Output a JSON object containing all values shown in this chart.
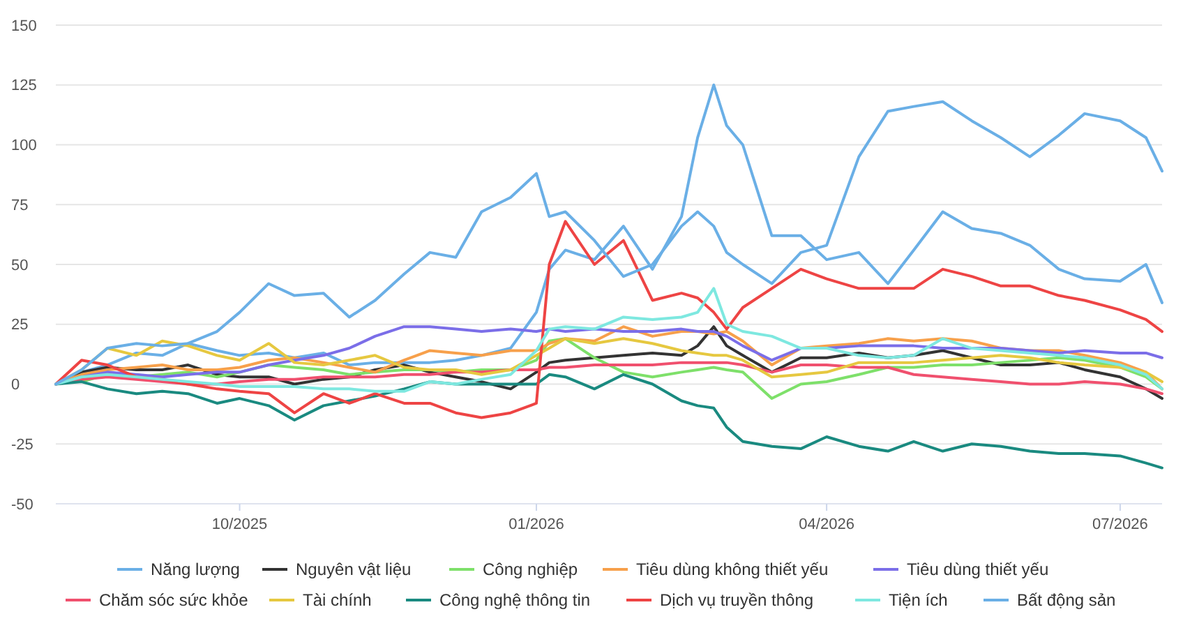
{
  "chart_data": {
    "type": "line",
    "x": [
      "2025-08-05",
      "2025-08-13",
      "2025-08-21",
      "2025-08-30",
      "2025-09-07",
      "2025-09-15",
      "2025-09-24",
      "2025-10-01",
      "2025-10-10",
      "2025-10-18",
      "2025-10-27",
      "2025-11-04",
      "2025-11-12",
      "2025-11-21",
      "2025-11-29",
      "2025-12-07",
      "2025-12-15",
      "2025-12-24",
      "2026-01-01",
      "2026-01-05",
      "2026-01-10",
      "2026-01-19",
      "2026-01-28",
      "2026-02-06",
      "2026-02-15",
      "2026-02-20",
      "2026-02-25",
      "2026-03-01",
      "2026-03-06",
      "2026-03-15",
      "2026-03-24",
      "2026-04-01",
      "2026-04-11",
      "2026-04-20",
      "2026-04-28",
      "2026-05-07",
      "2026-05-16",
      "2026-05-25",
      "2026-06-03",
      "2026-06-12",
      "2026-06-20",
      "2026-07-01",
      "2026-07-09",
      "2026-07-14"
    ],
    "series": [
      {
        "name": "Năng lượng",
        "color": "#6aafe6",
        "values": [
          0,
          5,
          8,
          13,
          12,
          17,
          14,
          12,
          13,
          11,
          13,
          8,
          9,
          9,
          9,
          10,
          12,
          15,
          30,
          48,
          56,
          52,
          66,
          48,
          70,
          103,
          125,
          108,
          100,
          62,
          62,
          52,
          55,
          42,
          56,
          72,
          65,
          63,
          58,
          48,
          44,
          43,
          50,
          34
        ]
      },
      {
        "name": "Nguyên vật liệu",
        "color": "#333333",
        "values": [
          0,
          5,
          7,
          6,
          6,
          8,
          4,
          3,
          3,
          0,
          2,
          3,
          6,
          8,
          5,
          3,
          1,
          -2,
          5,
          9,
          10,
          11,
          12,
          13,
          12,
          16,
          24,
          16,
          12,
          5,
          11,
          11,
          13,
          11,
          12,
          14,
          11,
          8,
          8,
          9,
          6,
          3,
          -2,
          -6
        ]
      },
      {
        "name": "Công nghiệp",
        "color": "#7ee06a",
        "values": [
          null,
          1,
          4,
          3,
          4,
          5,
          3,
          5,
          8,
          7,
          6,
          4,
          5,
          6,
          6,
          5,
          6,
          6,
          10,
          18,
          19,
          11,
          5,
          3,
          5,
          6,
          7,
          6,
          5,
          -6,
          0,
          1,
          4,
          7,
          7,
          8,
          8,
          9,
          10,
          11,
          10,
          7,
          3,
          -2
        ]
      },
      {
        "name": "Tiêu dùng không thiết yếu",
        "color": "#f7a04b",
        "values": [
          0,
          4,
          6,
          7,
          8,
          6,
          6,
          7,
          10,
          11,
          9,
          7,
          5,
          10,
          14,
          13,
          12,
          14,
          14,
          17,
          19,
          18,
          24,
          20,
          22,
          22,
          21,
          22,
          18,
          8,
          15,
          16,
          17,
          19,
          18,
          19,
          18,
          15,
          14,
          14,
          12,
          9,
          5,
          -2
        ]
      },
      {
        "name": "Tiêu dùng thiết yếu",
        "color": "#7b6ee8",
        "values": [
          0,
          3,
          5,
          4,
          3,
          4,
          5,
          5,
          8,
          10,
          12,
          15,
          20,
          24,
          24,
          23,
          22,
          23,
          22,
          23,
          22,
          23,
          22,
          22,
          23,
          22,
          22,
          20,
          16,
          10,
          15,
          15,
          16,
          16,
          16,
          15,
          15,
          15,
          14,
          13,
          14,
          13,
          13,
          11
        ]
      },
      {
        "name": "Chăm sóc sức khỏe",
        "color": "#f0506e",
        "values": [
          0,
          2,
          3,
          2,
          1,
          0,
          0,
          1,
          2,
          2,
          3,
          3,
          3,
          4,
          4,
          5,
          5,
          6,
          6,
          7,
          7,
          8,
          8,
          8,
          9,
          9,
          9,
          9,
          8,
          5,
          8,
          8,
          7,
          7,
          4,
          3,
          2,
          1,
          0,
          0,
          1,
          0,
          -2,
          -4
        ]
      },
      {
        "name": "Tài chính",
        "color": "#e6c840",
        "values": [
          0,
          6,
          15,
          12,
          18,
          16,
          12,
          10,
          17,
          9,
          8,
          10,
          12,
          7,
          6,
          6,
          4,
          6,
          12,
          15,
          19,
          17,
          19,
          17,
          14,
          13,
          12,
          12,
          10,
          3,
          4,
          5,
          9,
          9,
          9,
          10,
          11,
          12,
          11,
          9,
          8,
          7,
          5,
          1
        ]
      },
      {
        "name": "Công nghệ thông tin",
        "color": "#1a8a80",
        "values": [
          0,
          1,
          -2,
          -4,
          -3,
          -4,
          -8,
          -6,
          -9,
          -15,
          -9,
          -7,
          -5,
          -2,
          1,
          0,
          0,
          0,
          0,
          4,
          3,
          -2,
          4,
          0,
          -7,
          -9,
          -10,
          -18,
          -24,
          -26,
          -27,
          -22,
          -26,
          -28,
          -24,
          -28,
          -25,
          -26,
          -28,
          -29,
          -29,
          -30,
          -33,
          -35
        ]
      },
      {
        "name": "Dịch vụ truyền thông",
        "color": "#ee4444",
        "values": [
          0,
          10,
          8,
          3,
          2,
          0,
          -2,
          -3,
          -4,
          -12,
          -4,
          -8,
          -4,
          -8,
          -8,
          -12,
          -14,
          -12,
          -8,
          50,
          68,
          50,
          60,
          35,
          38,
          36,
          30,
          23,
          32,
          40,
          48,
          44,
          40,
          40,
          40,
          48,
          45,
          41,
          41,
          37,
          35,
          31,
          27,
          22
        ]
      },
      {
        "name": "Tiện ích",
        "color": "#7ee8e0",
        "values": [
          0,
          3,
          4,
          3,
          2,
          1,
          0,
          -1,
          -1,
          -1,
          -2,
          -2,
          -3,
          -3,
          1,
          0,
          2,
          4,
          14,
          23,
          24,
          23,
          28,
          27,
          28,
          30,
          40,
          25,
          22,
          20,
          15,
          15,
          12,
          11,
          12,
          19,
          15,
          14,
          13,
          12,
          11,
          8,
          4,
          -2
        ]
      },
      {
        "name": "Bất động sản",
        "color": "#6aafe6",
        "values": [
          0,
          6,
          15,
          17,
          16,
          17,
          22,
          30,
          42,
          37,
          38,
          28,
          35,
          46,
          55,
          53,
          72,
          78,
          88,
          70,
          72,
          60,
          45,
          50,
          66,
          72,
          66,
          55,
          50,
          42,
          55,
          58,
          95,
          114,
          116,
          118,
          110,
          103,
          95,
          104,
          113,
          110,
          103,
          89
        ]
      }
    ],
    "ylim": [
      -50,
      150
    ],
    "yticks": [
      -50,
      -25,
      0,
      25,
      50,
      75,
      100,
      125,
      150
    ],
    "xlim": [
      "2025-08-05",
      "2026-07-14"
    ],
    "xticks": [
      {
        "value": "2025-10-01",
        "label": "10/2025"
      },
      {
        "value": "2026-01-01",
        "label": "01/2026"
      },
      {
        "value": "2026-04-01",
        "label": "04/2026"
      },
      {
        "value": "2026-07-01",
        "label": "07/2026"
      }
    ],
    "grid": "y",
    "legend": "bottom",
    "marker": "none",
    "line_style": "solid"
  }
}
